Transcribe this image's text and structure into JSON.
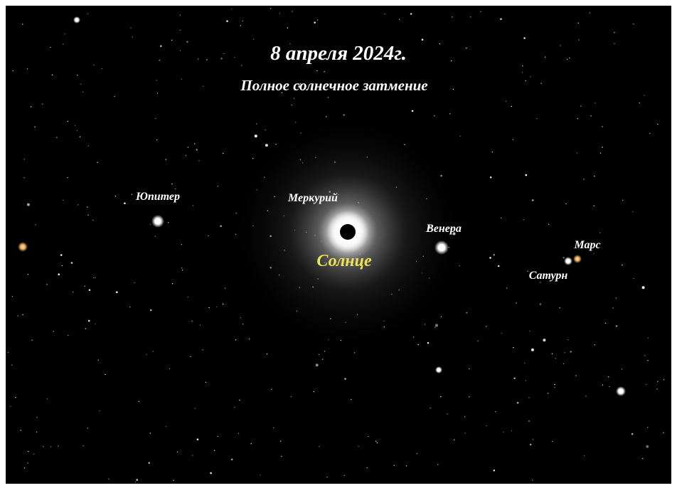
{
  "header": {
    "title": "8 апреля 2024г.",
    "subtitle": "Полное солнечное затмение"
  },
  "objects": [
    {
      "label": "Юпитер"
    },
    {
      "label": "Меркурий"
    },
    {
      "label": "Солнце"
    },
    {
      "label": "Венера"
    },
    {
      "label": "Марс"
    },
    {
      "label": "Сатурн"
    }
  ]
}
